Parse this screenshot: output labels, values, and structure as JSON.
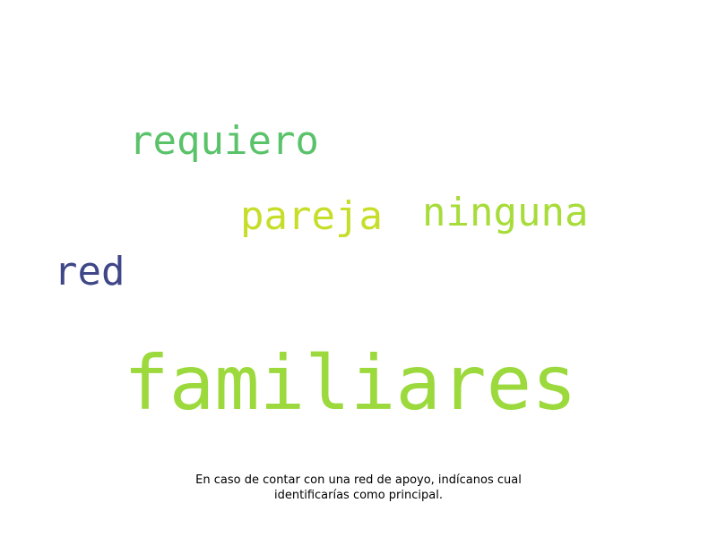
{
  "wordcloud": {
    "words": [
      {
        "text": "requiero",
        "color": "#5ac36a"
      },
      {
        "text": "pareja",
        "color": "#c6de2a"
      },
      {
        "text": "ninguna",
        "color": "#a7dc3a"
      },
      {
        "text": "red",
        "color": "#3f4788"
      },
      {
        "text": "familiares",
        "color": "#9bd93c"
      }
    ]
  },
  "caption": {
    "line1": "En caso de contar con una red de apoyo, indícanos cual",
    "line2": "identificarías como principal."
  }
}
